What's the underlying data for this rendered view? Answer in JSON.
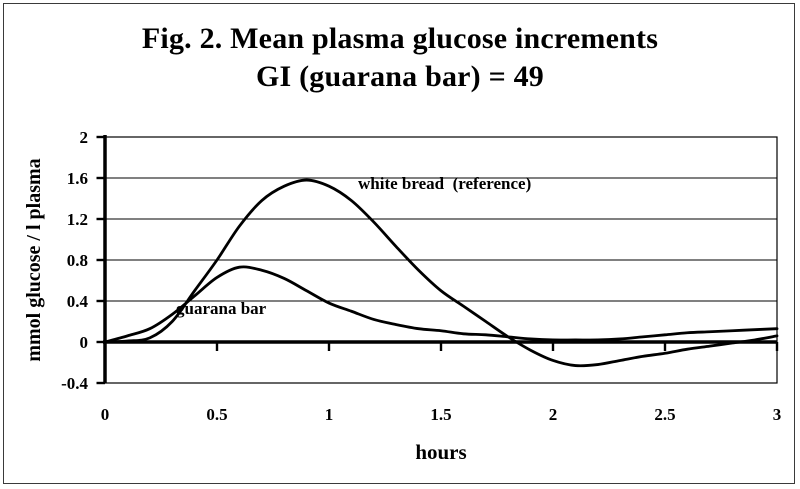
{
  "figure": {
    "title_line1": "Fig. 2. Mean plasma glucose increments",
    "title_line2": "GI (guarana bar) = 49"
  },
  "chart_data": {
    "type": "line",
    "title": "Fig. 2. Mean plasma glucose increments",
    "subtitle": "GI (guarana bar) = 49",
    "xlabel": "hours",
    "ylabel": "mmol glucose / l plasma",
    "xlim": [
      0,
      3
    ],
    "ylim": [
      -0.4,
      2
    ],
    "x_ticks": [
      0,
      0.5,
      1,
      1.5,
      2,
      2.5,
      3
    ],
    "x_tick_labels": [
      "0",
      "0.5",
      "1",
      "1.5",
      "2",
      "2.5",
      "3"
    ],
    "y_ticks": [
      2,
      1.6,
      1.2,
      0.8,
      0.4,
      0,
      -0.4
    ],
    "y_tick_labels": [
      "2",
      "1.6",
      "1.2",
      "0.8",
      "0.4",
      "0",
      "-0.4"
    ],
    "grid": "horizontal",
    "legend_position": "inline-annotations",
    "line_color": "#000000",
    "x": [
      0,
      0.1,
      0.2,
      0.3,
      0.4,
      0.5,
      0.6,
      0.7,
      0.8,
      0.9,
      1.0,
      1.1,
      1.2,
      1.3,
      1.4,
      1.5,
      1.6,
      1.7,
      1.8,
      1.9,
      2.0,
      2.1,
      2.2,
      2.3,
      2.4,
      2.5,
      2.6,
      2.7,
      2.8,
      2.9,
      3.0
    ],
    "series": [
      {
        "name": "white bread  (reference)",
        "values": [
          0,
          0.01,
          0.04,
          0.2,
          0.5,
          0.8,
          1.13,
          1.38,
          1.52,
          1.58,
          1.52,
          1.38,
          1.17,
          0.93,
          0.7,
          0.5,
          0.35,
          0.2,
          0.05,
          -0.08,
          -0.18,
          -0.23,
          -0.22,
          -0.18,
          -0.14,
          -0.11,
          -0.07,
          -0.04,
          -0.01,
          0.02,
          0.06
        ]
      },
      {
        "name": "guarana bar",
        "values": [
          0,
          0.06,
          0.13,
          0.27,
          0.45,
          0.63,
          0.73,
          0.7,
          0.62,
          0.5,
          0.38,
          0.3,
          0.22,
          0.17,
          0.13,
          0.11,
          0.08,
          0.07,
          0.05,
          0.03,
          0.02,
          0.02,
          0.02,
          0.03,
          0.05,
          0.07,
          0.09,
          0.1,
          0.11,
          0.12,
          0.13
        ]
      }
    ],
    "annotations": [
      {
        "text": "white bread  (reference)",
        "x": 1.13,
        "y": 1.5
      },
      {
        "text": "guarana bar",
        "x": 0.32,
        "y": 0.33
      }
    ]
  }
}
